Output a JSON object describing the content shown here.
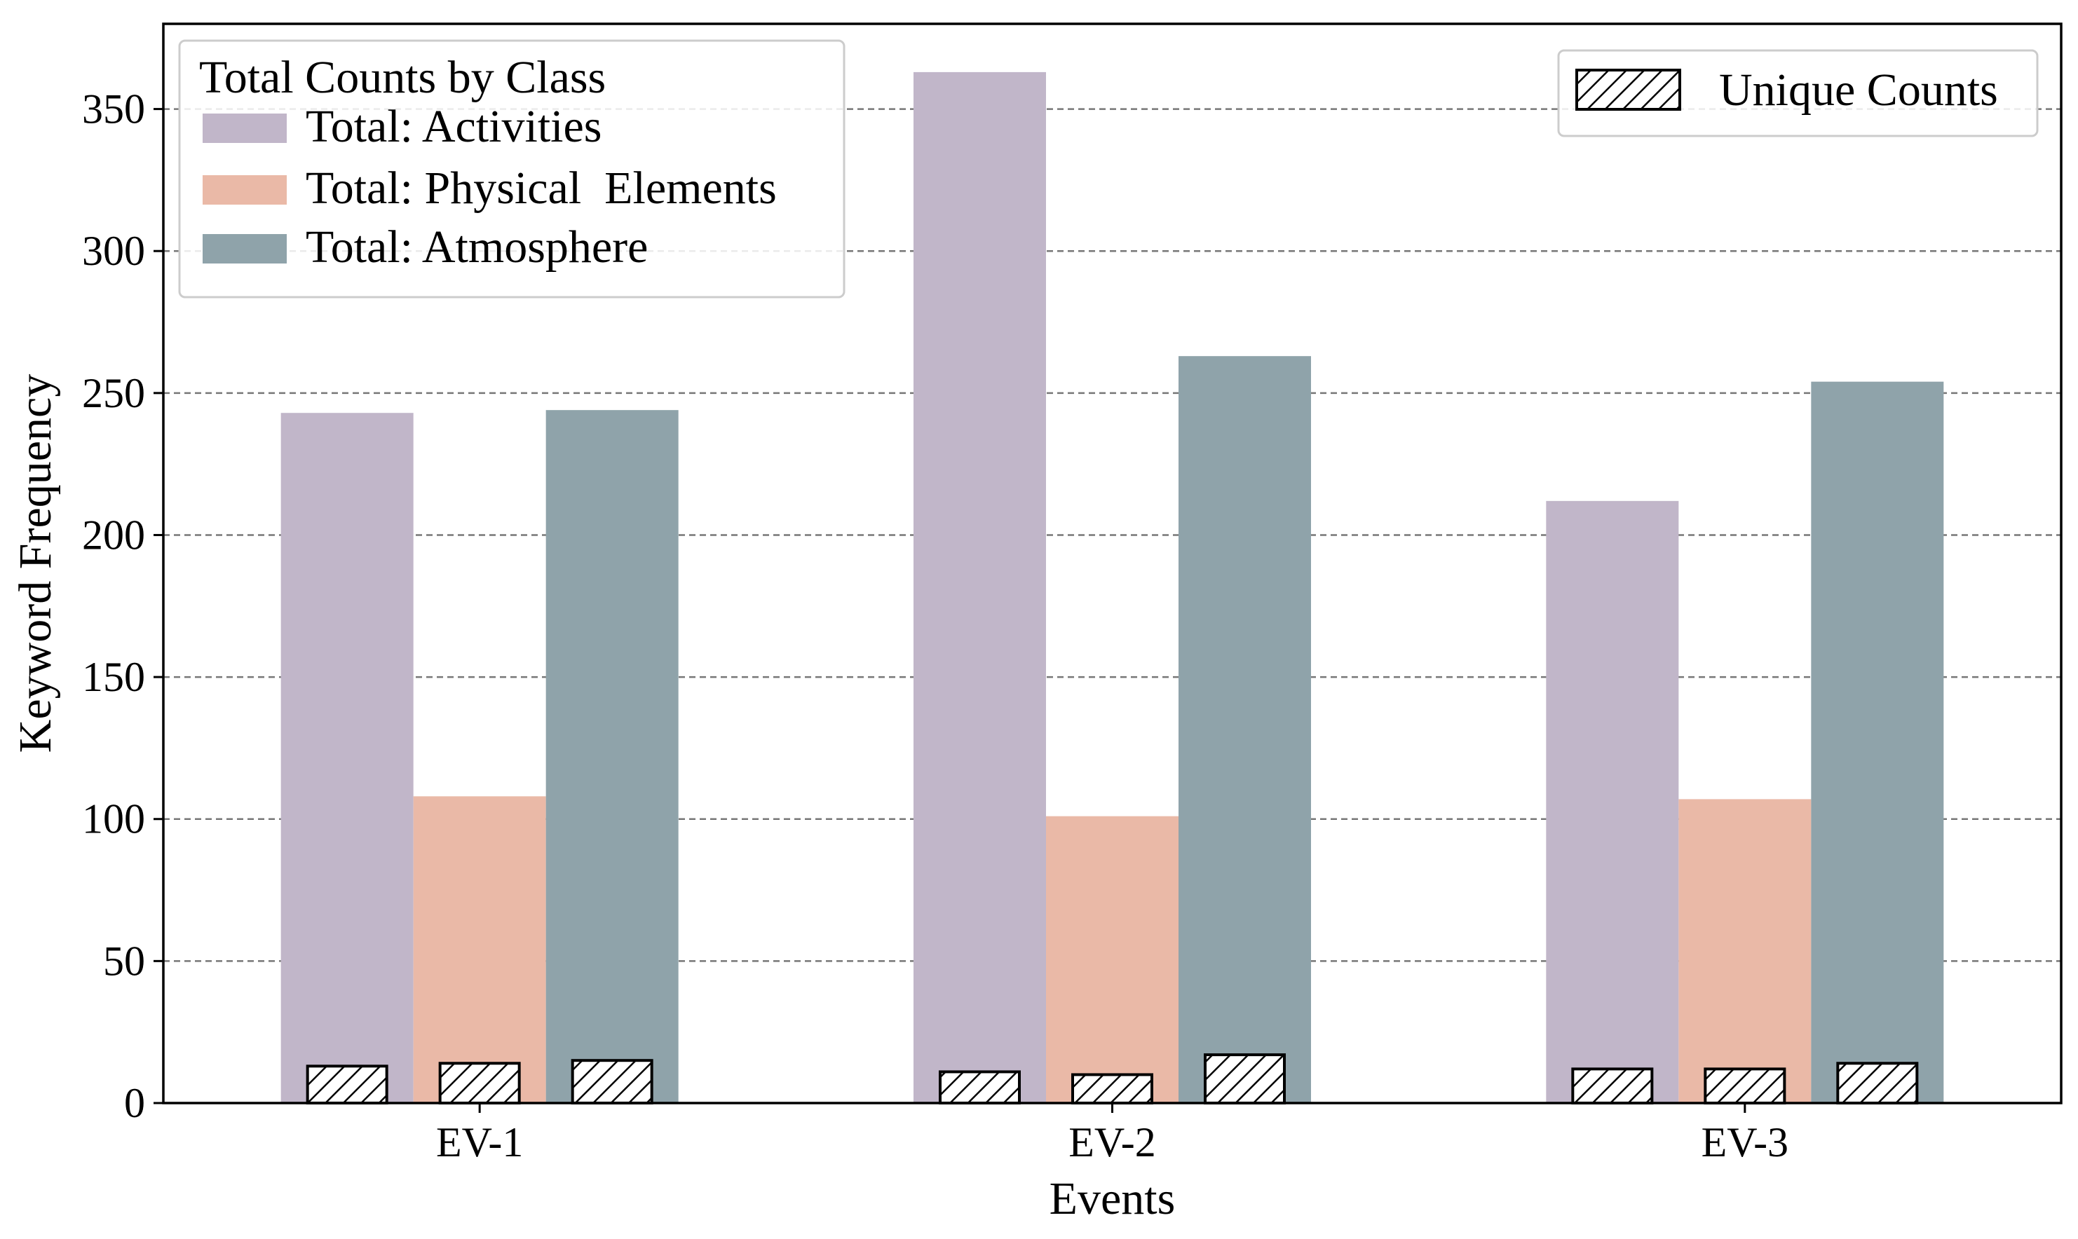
{
  "chart_data": {
    "type": "bar",
    "xlabel": "Events",
    "ylabel": "Keyword Frequency",
    "categories": [
      "EV-1",
      "EV-2",
      "EV-3"
    ],
    "ylim": [
      0,
      380
    ],
    "yticks": [
      0,
      50,
      100,
      150,
      200,
      250,
      300,
      350
    ],
    "grid": "horizontal dashed",
    "series": [
      {
        "name": "Total: Activities",
        "color": "#c1b6c9",
        "values": [
          243,
          363,
          212
        ]
      },
      {
        "name": "Total: Physical  Elements",
        "color": "#eab9a7",
        "values": [
          108,
          101,
          107
        ]
      },
      {
        "name": "Total: Atmosphere",
        "color": "#8fa3aa",
        "values": [
          244,
          263,
          254
        ]
      }
    ],
    "unique_series": {
      "name": "Unique Counts",
      "pattern": "hatched",
      "values": [
        [
          13,
          14,
          15
        ],
        [
          11,
          10,
          17
        ],
        [
          12,
          12,
          14
        ]
      ]
    },
    "legend_totals": {
      "title": "Total Counts by Class",
      "position": "top-left"
    },
    "legend_unique": {
      "label": "Unique Counts",
      "position": "top-right"
    }
  }
}
